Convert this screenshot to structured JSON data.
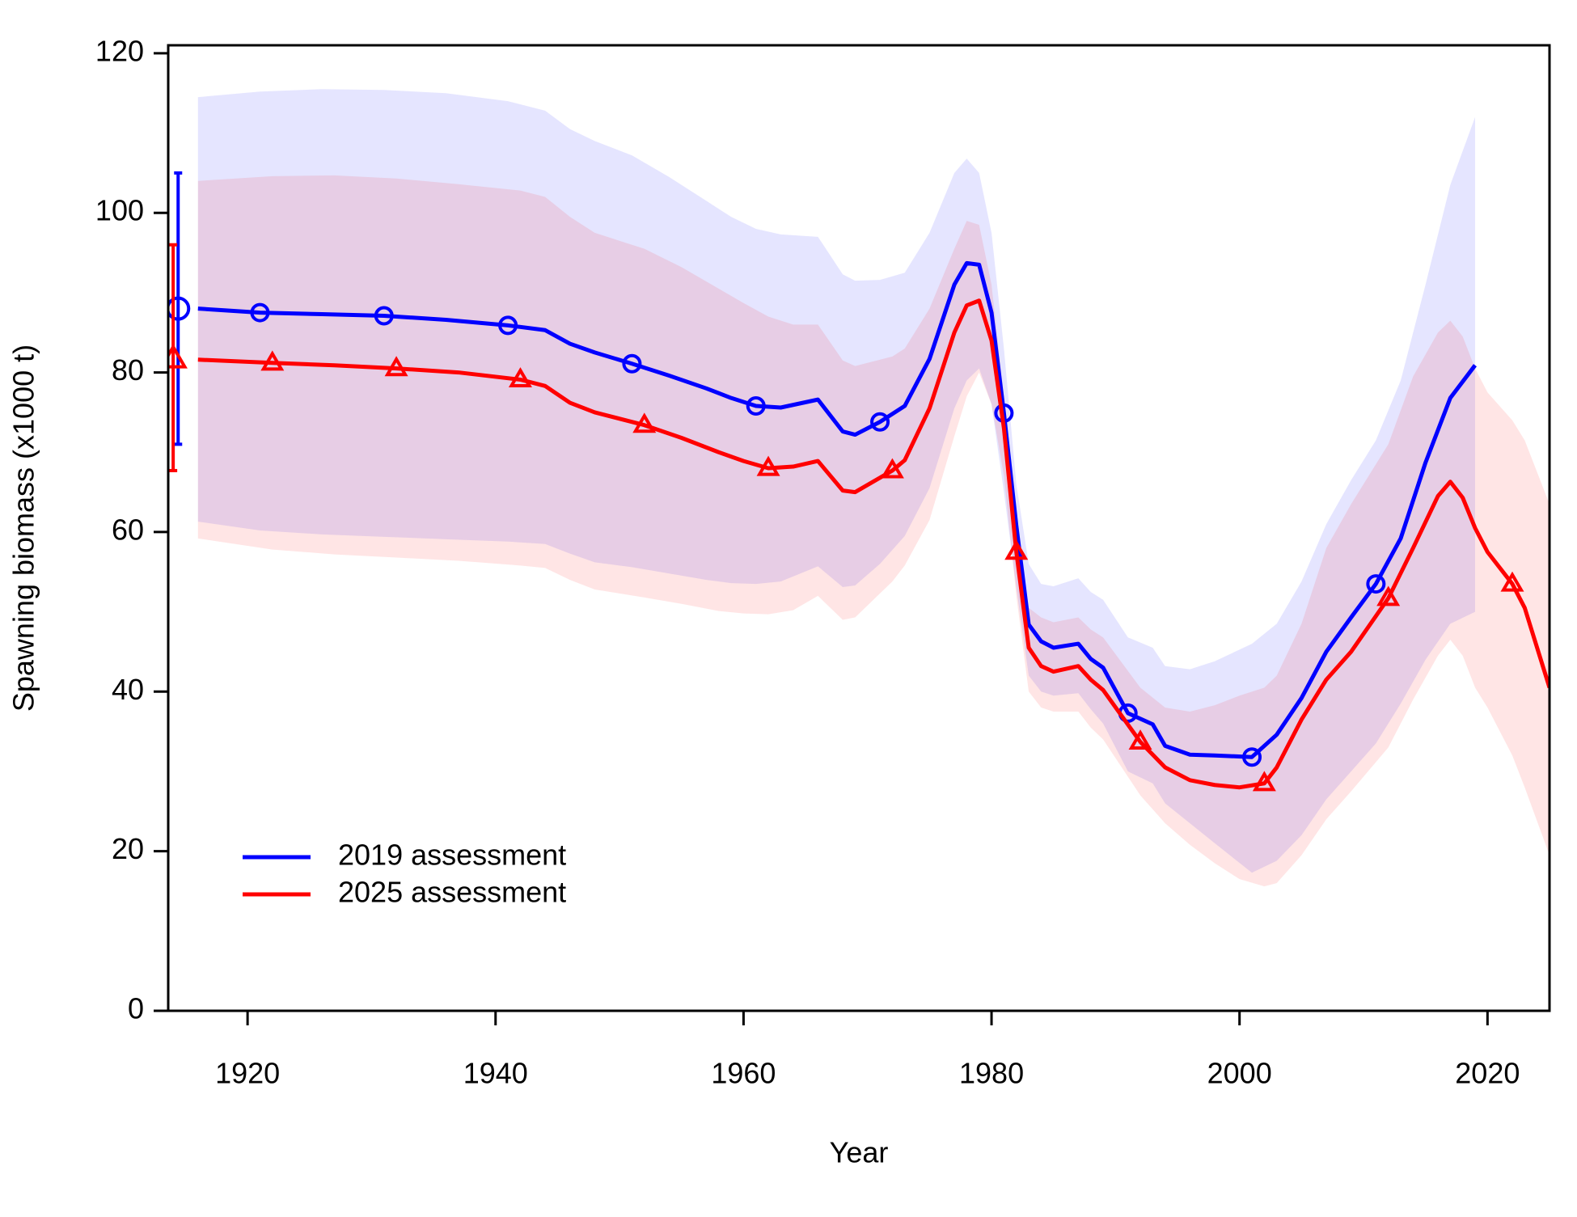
{
  "chart_data": {
    "type": "line",
    "x_label": "Year",
    "y_label": "Spawning biomass (x1000 t)",
    "xlim": [
      1913.6,
      2025
    ],
    "ylim": [
      0,
      121
    ],
    "xticks": [
      1920,
      1940,
      1960,
      1980,
      2000,
      2020
    ],
    "yticks": [
      0,
      20,
      40,
      60,
      80,
      100,
      120
    ],
    "grid": false,
    "legend": "bottom-left",
    "series": [
      {
        "name": "2019 assessment",
        "color": "#0000ff",
        "band_color": "rgba(0,0,255,0.1)",
        "marker": "circle",
        "marker_start": 1921,
        "marker_every": 10,
        "x": [
          1916,
          1921,
          1926,
          1931,
          1936,
          1941,
          1944,
          1946,
          1948,
          1951,
          1954,
          1957,
          1959,
          1961,
          1963,
          1966,
          1968,
          1969,
          1971,
          1973,
          1975,
          1977,
          1978,
          1979,
          1980,
          1981,
          1982,
          1983,
          1984,
          1985,
          1987,
          1988,
          1989,
          1991,
          1993,
          1994,
          1996,
          1998,
          2001,
          2003,
          2005,
          2007,
          2009,
          2011,
          2013,
          2015,
          2017,
          2019
        ],
        "values": [
          88.0,
          87.5,
          87.3,
          87.1,
          86.6,
          85.9,
          85.3,
          83.6,
          82.5,
          81.1,
          79.6,
          78.0,
          76.8,
          75.8,
          75.6,
          76.6,
          72.6,
          72.2,
          73.8,
          75.8,
          81.7,
          91.0,
          93.7,
          93.5,
          87.5,
          74.9,
          60.8,
          48.4,
          46.3,
          45.5,
          46.0,
          44.1,
          43.0,
          37.3,
          35.9,
          33.2,
          32.1,
          32.0,
          31.8,
          34.6,
          39.2,
          45.0,
          49.3,
          53.5,
          59.2,
          68.7,
          76.8,
          80.9
        ],
        "upper": [
          114.5,
          115.2,
          115.5,
          115.4,
          115.0,
          114.0,
          112.8,
          110.5,
          109.0,
          107.2,
          104.5,
          101.5,
          99.5,
          98.0,
          97.3,
          97.0,
          92.3,
          91.5,
          91.6,
          92.5,
          97.5,
          105.0,
          106.8,
          105.0,
          97.5,
          83.0,
          66.0,
          56.0,
          53.5,
          53.2,
          54.2,
          52.5,
          51.5,
          46.8,
          45.5,
          43.2,
          42.8,
          43.8,
          46.0,
          48.5,
          53.8,
          61.0,
          66.5,
          71.5,
          79.0,
          91.0,
          103.5,
          112.0
        ],
        "lower": [
          61.3,
          60.2,
          59.7,
          59.4,
          59.1,
          58.8,
          58.5,
          57.3,
          56.2,
          55.6,
          54.8,
          54.0,
          53.6,
          53.5,
          53.8,
          55.7,
          53.1,
          53.3,
          56.0,
          59.5,
          65.5,
          75.5,
          79.0,
          80.5,
          76.0,
          65.0,
          53.0,
          42.0,
          40.0,
          39.5,
          39.8,
          37.8,
          36.0,
          30.0,
          28.5,
          26.0,
          23.5,
          21.0,
          17.3,
          18.8,
          22.0,
          26.5,
          30.0,
          33.5,
          38.5,
          44.0,
          48.5,
          50.0
        ],
        "unfished": {
          "x": 1914.4,
          "value": 88.0,
          "lower": 71.0,
          "upper": 105.0
        }
      },
      {
        "name": "2025 assessment",
        "color": "#ff0000",
        "band_color": "rgba(255,0,0,0.1)",
        "marker": "triangle",
        "marker_start": 1922,
        "marker_every": 10,
        "x": [
          1916,
          1922,
          1927,
          1932,
          1937,
          1942,
          1944,
          1946,
          1948,
          1952,
          1955,
          1958,
          1960,
          1962,
          1964,
          1966,
          1968,
          1969,
          1972,
          1973,
          1975,
          1977,
          1978,
          1979,
          1980,
          1981,
          1982,
          1983,
          1984,
          1985,
          1987,
          1988,
          1989,
          1992,
          1994,
          1996,
          1998,
          2000,
          2002,
          2003,
          2005,
          2007,
          2009,
          2012,
          2014,
          2016,
          2017,
          2018,
          2019,
          2020,
          2022,
          2023,
          2025
        ],
        "values": [
          81.6,
          81.2,
          80.9,
          80.5,
          80.0,
          79.1,
          78.3,
          76.2,
          75.0,
          73.4,
          71.8,
          70.0,
          68.9,
          68.0,
          68.2,
          68.9,
          65.2,
          65.0,
          67.7,
          69.0,
          75.5,
          85.0,
          88.4,
          89.0,
          84.0,
          73.0,
          57.5,
          45.5,
          43.2,
          42.5,
          43.2,
          41.5,
          40.2,
          33.7,
          30.5,
          28.9,
          28.3,
          28.0,
          28.5,
          30.5,
          36.5,
          41.5,
          45.0,
          51.7,
          58.0,
          64.5,
          66.3,
          64.3,
          60.5,
          57.5,
          53.5,
          50.5,
          40.5
        ],
        "upper": [
          104.0,
          104.6,
          104.7,
          104.3,
          103.6,
          102.8,
          102.0,
          99.5,
          97.5,
          95.5,
          93.2,
          90.5,
          88.7,
          87.0,
          86.0,
          86.0,
          81.5,
          80.8,
          82.0,
          83.0,
          88.0,
          95.5,
          99.0,
          98.5,
          91.0,
          77.0,
          62.0,
          50.5,
          49.3,
          48.7,
          49.3,
          47.8,
          46.8,
          40.5,
          38.0,
          37.5,
          38.3,
          39.5,
          40.5,
          42.0,
          48.5,
          58.0,
          63.5,
          71.0,
          79.5,
          85.0,
          86.5,
          84.5,
          80.5,
          77.5,
          74.0,
          71.5,
          63.5
        ],
        "lower": [
          59.2,
          57.8,
          57.2,
          56.8,
          56.4,
          55.8,
          55.5,
          54.0,
          52.8,
          51.8,
          51.0,
          50.1,
          49.8,
          49.7,
          50.2,
          52.0,
          49.0,
          49.3,
          53.8,
          55.8,
          61.5,
          72.0,
          77.0,
          80.0,
          76.0,
          67.0,
          52.0,
          40.0,
          38.0,
          37.5,
          37.5,
          35.5,
          34.0,
          27.0,
          23.5,
          20.8,
          18.5,
          16.5,
          15.6,
          16.0,
          19.5,
          24.0,
          27.5,
          33.0,
          39.0,
          44.5,
          46.5,
          44.5,
          40.5,
          38.0,
          32.0,
          28.0,
          19.5
        ],
        "unfished": {
          "x": 1914.0,
          "value": 81.7,
          "lower": 67.7,
          "upper": 96.0
        }
      }
    ]
  }
}
